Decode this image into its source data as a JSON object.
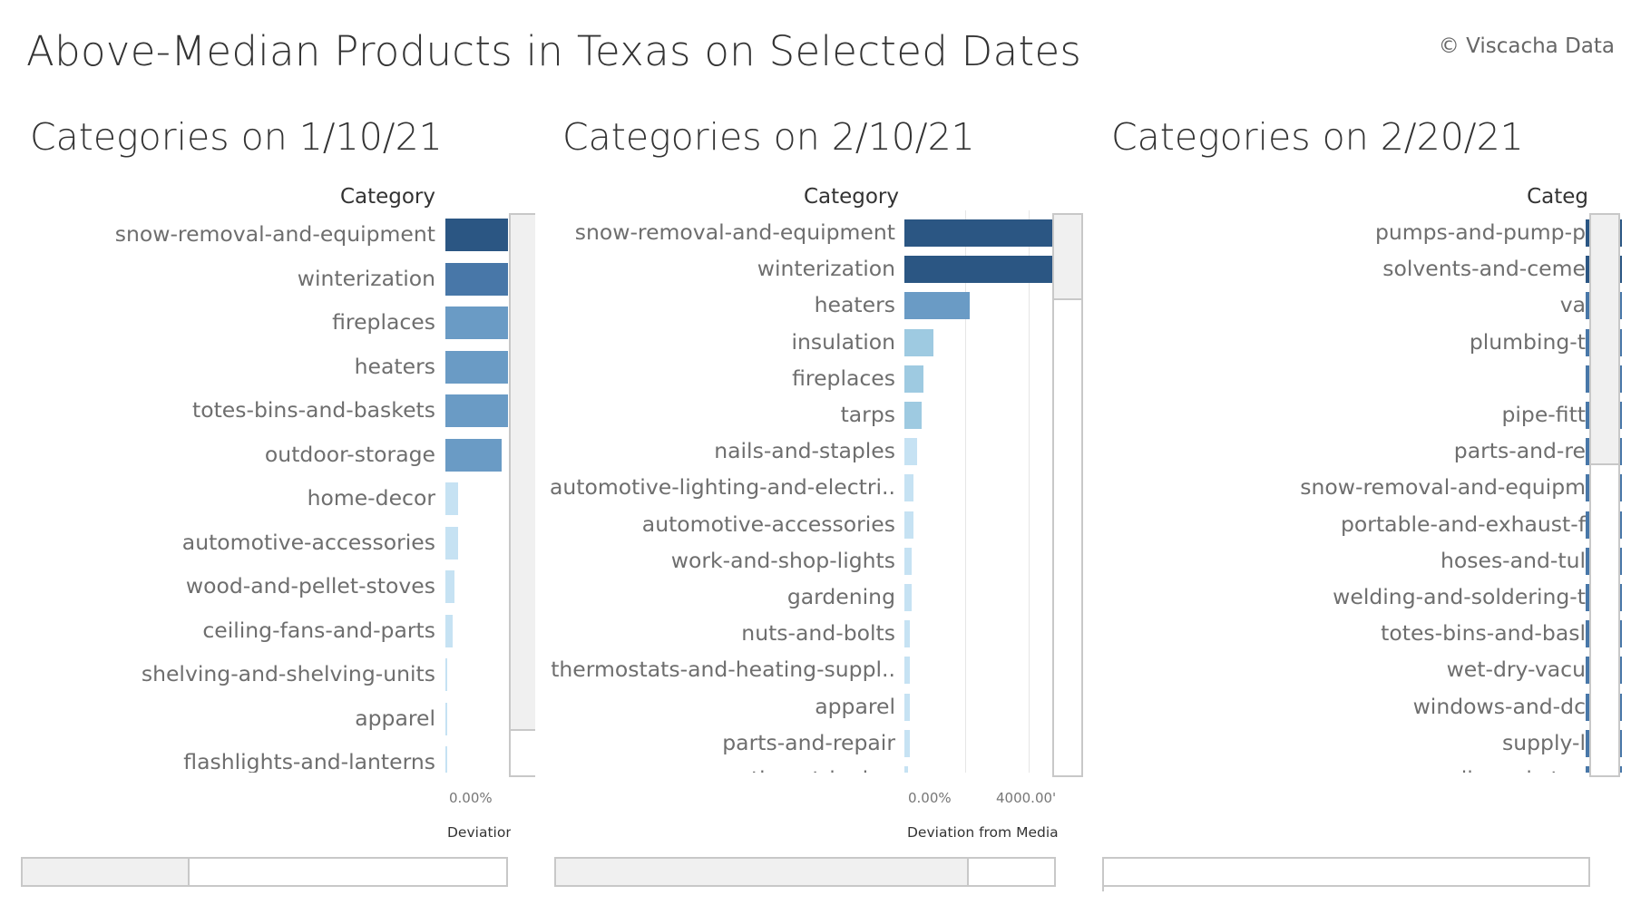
{
  "header": {
    "title": "Above-Median Products in Texas on Selected Dates",
    "credit": "© Viscacha Data"
  },
  "colors": {
    "darkest": "#2b5683",
    "dark": "#4877a8",
    "mid": "#6a9bc5",
    "light": "#9ecae1",
    "lightest": "#c6e2f3"
  },
  "chart_data": [
    {
      "type": "bar",
      "orientation": "horizontal",
      "title": "Categories on 1/10/21",
      "category_header": "Category",
      "xlabel": "Deviation",
      "x_ticks": [
        "0.00%"
      ],
      "categories": [
        "snow-removal-and-equipment",
        "winterization",
        "fireplaces",
        "heaters",
        "totes-bins-and-baskets",
        "outdoor-storage",
        "home-decor",
        "automotive-accessories",
        "wood-and-pellet-stoves",
        "ceiling-fans-and-parts",
        "shelving-and-shelving-units",
        "apparel",
        "flashlights-and-lanterns"
      ],
      "values": [
        1000,
        1000,
        1000,
        1000,
        1000,
        900,
        200,
        200,
        140,
        110,
        30,
        20,
        15
      ],
      "visible_xlim": [
        0,
        1000
      ]
    },
    {
      "type": "bar",
      "orientation": "horizontal",
      "title": "Categories on 2/10/21",
      "category_header": "Category",
      "xlabel": "Deviation from Media",
      "x_ticks": [
        "0.00%",
        "4000.00'"
      ],
      "categories": [
        "snow-removal-and-equipment",
        "winterization",
        "heaters",
        "insulation",
        "fireplaces",
        "tarps",
        "nails-and-staples",
        "automotive-lighting-and-electri..",
        "automotive-accessories",
        "work-and-shop-lights",
        "gardening",
        "nuts-and-bolts",
        "thermostats-and-heating-suppl..",
        "apparel",
        "parts-and-repair",
        "weather-stripping"
      ],
      "values": [
        9500,
        9500,
        4100,
        1800,
        1200,
        1100,
        800,
        550,
        550,
        450,
        450,
        330,
        330,
        330,
        330,
        200
      ],
      "visible_xlim": [
        0,
        9300
      ]
    },
    {
      "type": "bar",
      "orientation": "horizontal",
      "title": "Categories on 2/20/21",
      "category_header": "Categ",
      "xlabel": "",
      "x_ticks": [],
      "categories": [
        "pumps-and-pump-p",
        "solvents-and-ceme",
        "va",
        "plumbing-t",
        "",
        "pipe-fitt",
        "parts-and-re",
        "snow-removal-and-equipm",
        "portable-and-exhaust-f",
        "hoses-and-tul",
        "welding-and-soldering-t",
        "totes-bins-and-basl",
        "wet-dry-vacu",
        "windows-and-dc",
        "supply-l",
        "nails-and-stap"
      ],
      "values": [
        1000,
        1000,
        1000,
        1000,
        1000,
        1000,
        1000,
        1000,
        1000,
        1000,
        1000,
        1000,
        1000,
        1000,
        1000,
        1000
      ],
      "visible_xlim": [
        0,
        1000
      ]
    }
  ]
}
